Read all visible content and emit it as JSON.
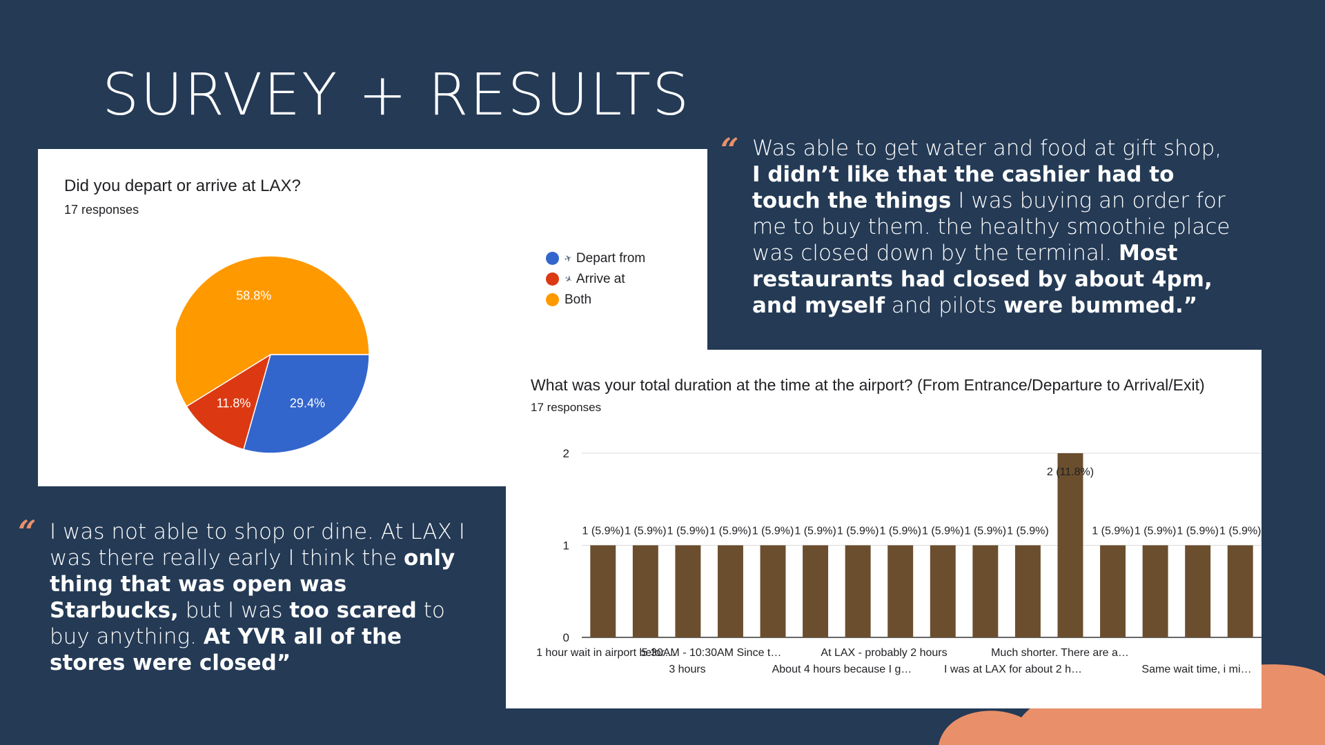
{
  "slide": {
    "title": "SURVEY + RESULTS"
  },
  "quote_top": {
    "parts": [
      {
        "text": "Was able to get water and food at gift shop, ",
        "bold": false
      },
      {
        "text": "I didn’t like that the cashier had to touch the things",
        "bold": true
      },
      {
        "text": " I was buying an order for me to buy them. the healthy smoothie place was closed down by the terminal. ",
        "bold": false
      },
      {
        "text": "Most restaurants had closed by about 4pm, and myself",
        "bold": true
      },
      {
        "text": " and pilots ",
        "bold": false
      },
      {
        "text": "were bummed.”",
        "bold": true
      }
    ]
  },
  "quote_bottom": {
    "parts": [
      {
        "text": "I was not able to shop or dine. At LAX I was there really early I think the ",
        "bold": false
      },
      {
        "text": "only thing that was open was Starbucks,",
        "bold": true
      },
      {
        "text": " but I was ",
        "bold": false
      },
      {
        "text": "too scared",
        "bold": true
      },
      {
        "text": " to buy anything. ",
        "bold": false
      },
      {
        "text": "At YVR all of the stores were closed”",
        "bold": true
      }
    ]
  },
  "colors": {
    "background": "#243a55",
    "accent": "#e9906a",
    "blue": "#3366cc",
    "red": "#dc3912",
    "orange": "#ff9900",
    "bar": "#6b4e2e"
  },
  "icons": {
    "quote": "quote-mark-icon",
    "depart": "plane-departure-icon",
    "arrive": "plane-arrival-icon"
  },
  "pie_card": {
    "title": "Did you depart or arrive at LAX?",
    "responses": "17 responses"
  },
  "bar_card": {
    "title": "What was your total duration at the time at the airport? (From Entrance/Departure to Arrival/Exit)",
    "responses": "17 responses"
  },
  "chart_data": [
    {
      "type": "pie",
      "title": "Did you depart or arrive at LAX?",
      "subtitle": "17 responses",
      "slices": [
        {
          "name": "Depart from",
          "value": 29.4,
          "label": "29.4%",
          "color": "#3366cc",
          "icon": "plane-departure-icon"
        },
        {
          "name": "Arrive at",
          "value": 11.8,
          "label": "11.8%",
          "color": "#dc3912",
          "icon": "plane-arrival-icon"
        },
        {
          "name": "Both",
          "value": 58.8,
          "label": "58.8%",
          "color": "#ff9900"
        }
      ],
      "legend": "right"
    },
    {
      "type": "bar",
      "title": "What was your total duration at the time at the airport? (From Entrance/Departure to Arrival/Exit)",
      "subtitle": "17 responses",
      "ylim": [
        0,
        2
      ],
      "yticks": [
        "0",
        "1",
        "2"
      ],
      "grid": true,
      "values": [
        1,
        1,
        1,
        1,
        1,
        1,
        1,
        1,
        1,
        1,
        1,
        2,
        1,
        1,
        1,
        1
      ],
      "data_labels": [
        "1 (5.9%)",
        "1 (5.9%)",
        "1 (5.9%)",
        "1 (5.9%)",
        "1 (5.9%)",
        "1 (5.9%)",
        "1 (5.9%)",
        "1 (5.9%)",
        "1 (5.9%)",
        "1 (5.9%)",
        "1 (5.9%)",
        "2 (11.8%)",
        "1 (5.9%)",
        "1 (5.9%)",
        "1 (5.9%)",
        "1 (5.9%)"
      ],
      "category_labels_row1": [
        "1 hour wait in airport befor…",
        "5:30AM - 10:30AM Since t…",
        "At LAX - probably 2 hours",
        "Much shorter. There are a…"
      ],
      "category_labels_row2": [
        "3 hours",
        "About 4 hours because I g…",
        "I was at LAX for about 2 h…",
        "Same wait time, i mi…"
      ],
      "color": "#6b4e2e"
    }
  ]
}
